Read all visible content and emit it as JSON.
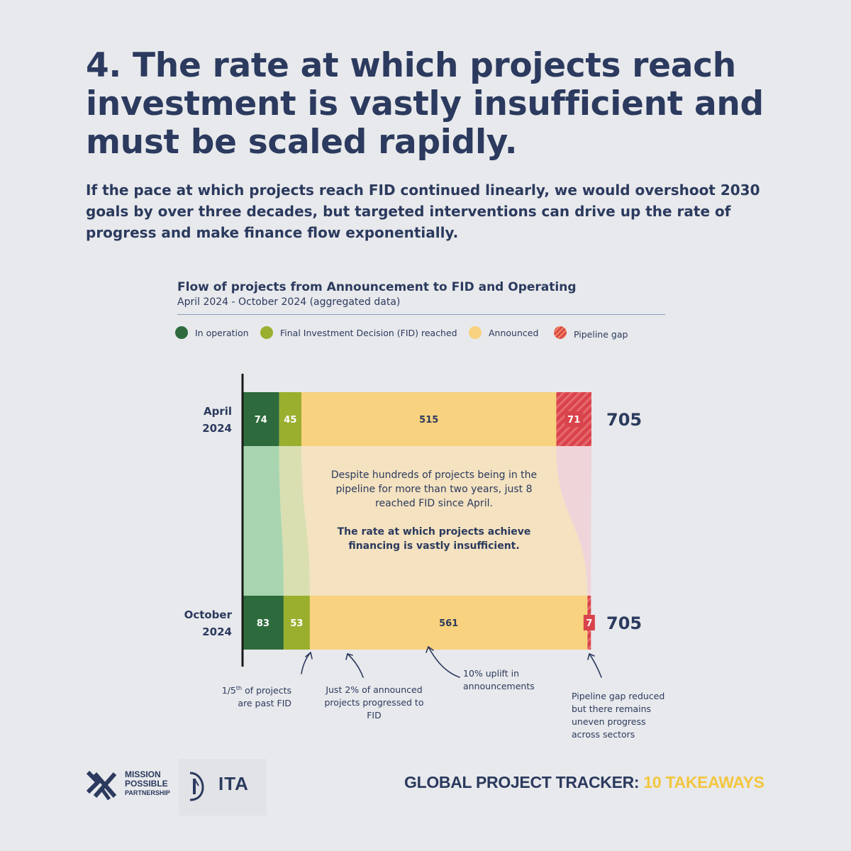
{
  "headline": "4. The rate at which projects reach investment is vastly insufficient and must be scaled rapidly.",
  "subhead": "If the pace at which projects reach FID continued linearly, we would overshoot 2030 goals by over three decades, but targeted interventions can drive up the rate of progress and make finance flow exponentially.",
  "chart_data": {
    "type": "bar",
    "orientation": "horizontal-stacked",
    "title": "Flow of projects from Announcement to FID and Operating",
    "subtitle": "April 2024 - October 2024 (aggregated data)",
    "categories": [
      "April 2024",
      "October 2024"
    ],
    "category_lines": [
      [
        "April",
        "2024"
      ],
      [
        "October",
        "2024"
      ]
    ],
    "series": [
      {
        "name": "In operation",
        "color": "#2e6b3c",
        "flow_color": "#a8d5b0",
        "label_color": "#ffffff",
        "values": [
          74,
          83
        ]
      },
      {
        "name": "Final Investment Decision (FID) reached",
        "color": "#9aaf2e",
        "flow_color": "#d9dfb0",
        "label_color": "#ffffff",
        "values": [
          45,
          53
        ]
      },
      {
        "name": "Announced",
        "color": "#f8d27e",
        "flow_color": "#f4e2c0",
        "label_color": "#2b3a5e",
        "values": [
          515,
          561
        ]
      },
      {
        "name": "Pipeline gap",
        "color": "#d9434b",
        "flow_color": "#efd4d9",
        "label_color": "#ffffff",
        "values": [
          71,
          7
        ]
      }
    ],
    "totals": [
      "705",
      "705"
    ],
    "xlim": [
      0,
      705
    ]
  },
  "legend": {
    "in_operation": "In operation",
    "fid": "Final Investment Decision (FID) reached",
    "announced": "Announced",
    "gap": "Pipeline gap"
  },
  "center_note": {
    "line1": "Despite hundreds of projects being in the pipeline for more than two years, just 8 reached FID since April.",
    "line2": "The rate at which projects achieve financing is vastly insufficient."
  },
  "annotations": {
    "past_fid_pre": "1/5",
    "past_fid_sup": "th",
    "past_fid_post": " of projects",
    "past_fid_line2": "are past FID",
    "progressed": "Just 2% of announced projects progressed to FID",
    "uplift": "10% uplift in announcements",
    "gap_reduced": "Pipeline gap reduced but there remains uneven progress across sectors"
  },
  "footer": {
    "brand_a": "GLOBAL PROJECT TRACKER:",
    "brand_b": "10 TAKEAWAYS",
    "mpp_line1": "MISSION",
    "mpp_line2": "POSSIBLE",
    "mpp_line3": "PARTNERSHIP",
    "ita": "ITA"
  },
  "colors": {
    "navy": "#2b3a5e",
    "background": "#e8e9ec",
    "accent_yellow": "#f3c63f"
  }
}
